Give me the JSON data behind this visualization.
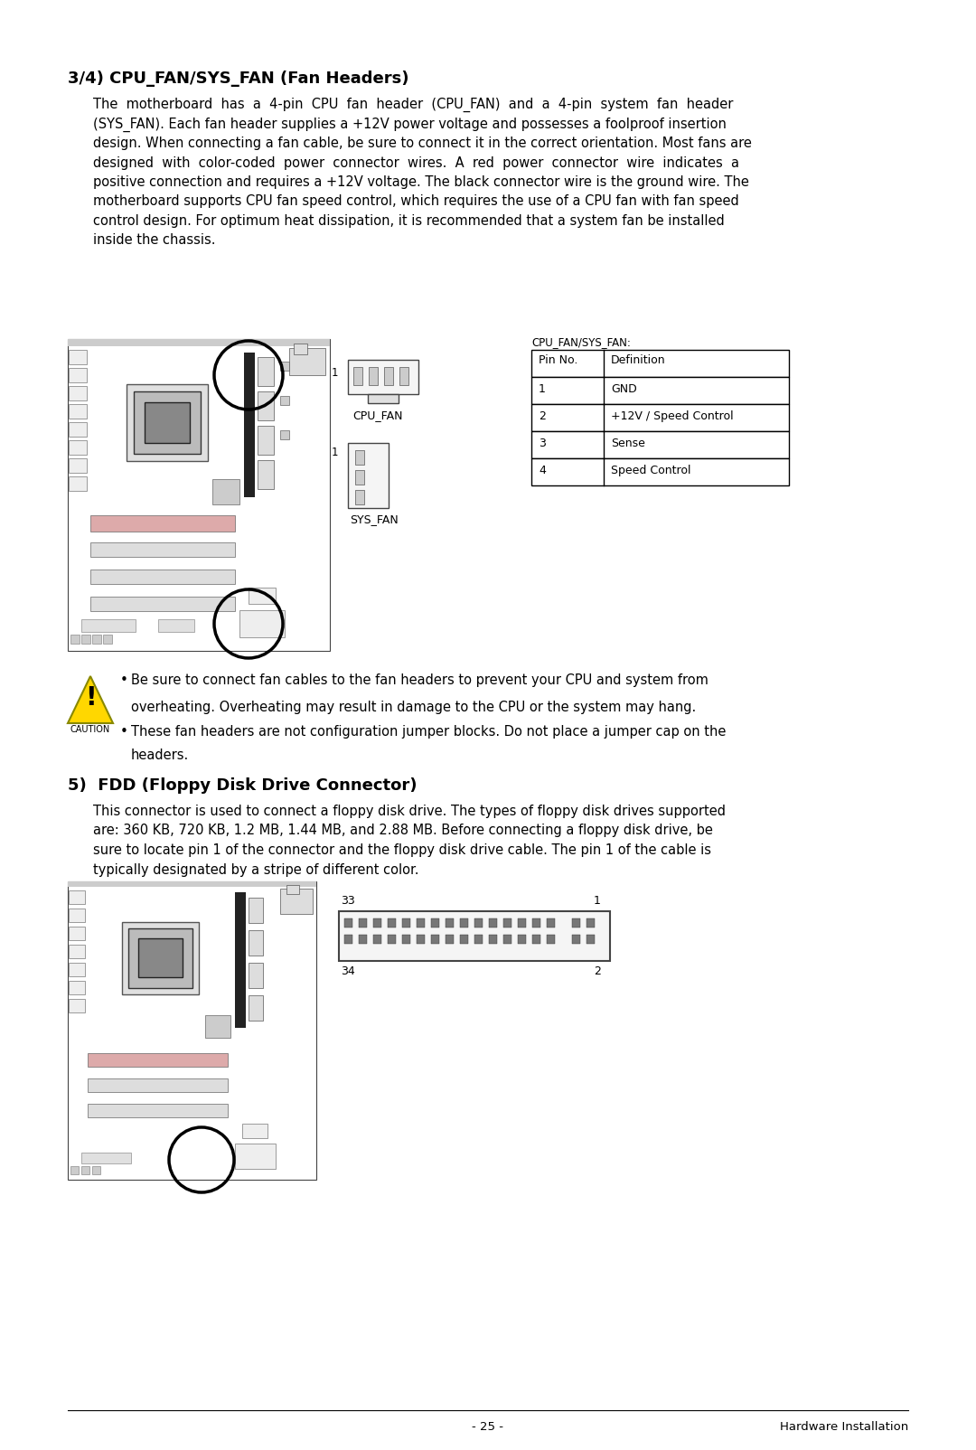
{
  "page_bg": "#ffffff",
  "section1_title": "3/4) CPU_FAN/SYS_FAN (Fan Headers)",
  "table_title": "CPU_FAN/SYS_FAN:",
  "table_headers": [
    "Pin No.",
    "Definition"
  ],
  "table_rows": [
    [
      "1",
      "GND"
    ],
    [
      "2",
      "+12V / Speed Control"
    ],
    [
      "3",
      "Sense"
    ],
    [
      "4",
      "Speed Control"
    ]
  ],
  "section2_title": "5)  FDD (Floppy Disk Drive Connector)",
  "footer_page": "- 25 -",
  "footer_right": "Hardware Installation",
  "font_size_title": 13,
  "font_size_body": 10.5,
  "font_size_small": 9.0,
  "text_color": "#000000",
  "body_lines_1": [
    "The  motherboard  has  a  4-pin  CPU  fan  header  (CPU_FAN)  and  a  4-pin  system  fan  header",
    "(SYS_FAN). Each fan header supplies a +12V power voltage and possesses a foolproof insertion",
    "design. When connecting a fan cable, be sure to connect it in the correct orientation. Most fans are",
    "designed  with  color-coded  power  connector  wires.  A  red  power  connector  wire  indicates  a",
    "positive connection and requires a +12V voltage. The black connector wire is the ground wire. The",
    "motherboard supports CPU fan speed control, which requires the use of a CPU fan with fan speed",
    "control design. For optimum heat dissipation, it is recommended that a system fan be installed",
    "inside the chassis."
  ],
  "body_lines_2": [
    "This connector is used to connect a floppy disk drive. The types of floppy disk drives supported",
    "are: 360 KB, 720 KB, 1.2 MB, 1.44 MB, and 2.88 MB. Before connecting a floppy disk drive, be",
    "sure to locate pin 1 of the connector and the floppy disk drive cable. The pin 1 of the cable is",
    "typically designated by a stripe of different color."
  ],
  "caution_line1a": "Be sure to connect fan cables to the fan headers to prevent your CPU and system from",
  "caution_line1b": "overheating. Overheating may result in damage to the CPU or the system may hang.",
  "caution_line2a": "These fan headers are not configuration jumper blocks. Do not place a jumper cap on the",
  "caution_line2b": "headers."
}
